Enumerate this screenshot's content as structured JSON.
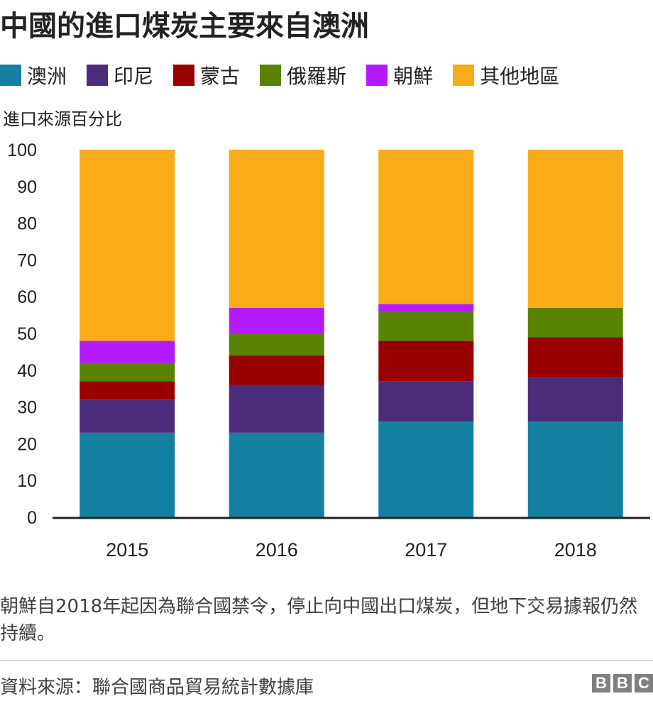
{
  "title": "中國的進口煤炭主要來自澳洲",
  "legend": [
    {
      "label": "澳洲",
      "color": "#1380A1"
    },
    {
      "label": "印尼",
      "color": "#4B2C7A"
    },
    {
      "label": "蒙古",
      "color": "#990000"
    },
    {
      "label": "俄羅斯",
      "color": "#588300"
    },
    {
      "label": "朝鮮",
      "color": "#B51AFF"
    },
    {
      "label": "其他地區",
      "color": "#FAAB18"
    }
  ],
  "chart_data": {
    "type": "bar",
    "stacked": true,
    "title": "中國的進口煤炭主要來自澳洲",
    "ylabel": "進口來源百分比",
    "xlabel": "",
    "categories": [
      "2015",
      "2016",
      "2017",
      "2018"
    ],
    "ylim": [
      0,
      100
    ],
    "yticks": [
      0,
      10,
      20,
      30,
      40,
      50,
      60,
      70,
      80,
      90,
      100
    ],
    "legend_position": "top",
    "grid": false,
    "series": [
      {
        "name": "澳洲",
        "color": "#1380A1",
        "values": [
          23,
          23,
          26,
          26
        ]
      },
      {
        "name": "印尼",
        "color": "#4B2C7A",
        "values": [
          9,
          13,
          11,
          12
        ]
      },
      {
        "name": "蒙古",
        "color": "#990000",
        "values": [
          5,
          8,
          11,
          11
        ]
      },
      {
        "name": "俄羅斯",
        "color": "#588300",
        "values": [
          5,
          6,
          8,
          8
        ]
      },
      {
        "name": "朝鮮",
        "color": "#B51AFF",
        "values": [
          6,
          7,
          2,
          0
        ]
      },
      {
        "name": "其他地區",
        "color": "#FAAB18",
        "values": [
          52,
          43,
          42,
          43
        ]
      }
    ]
  },
  "note": "朝鮮自2018年起因為聯合國禁令，停止向中國出口煤炭，但地下交易據報仍然持續。",
  "source": "資料來源：聯合國商品貿易統計數據庫",
  "logo": [
    "B",
    "B",
    "C"
  ]
}
